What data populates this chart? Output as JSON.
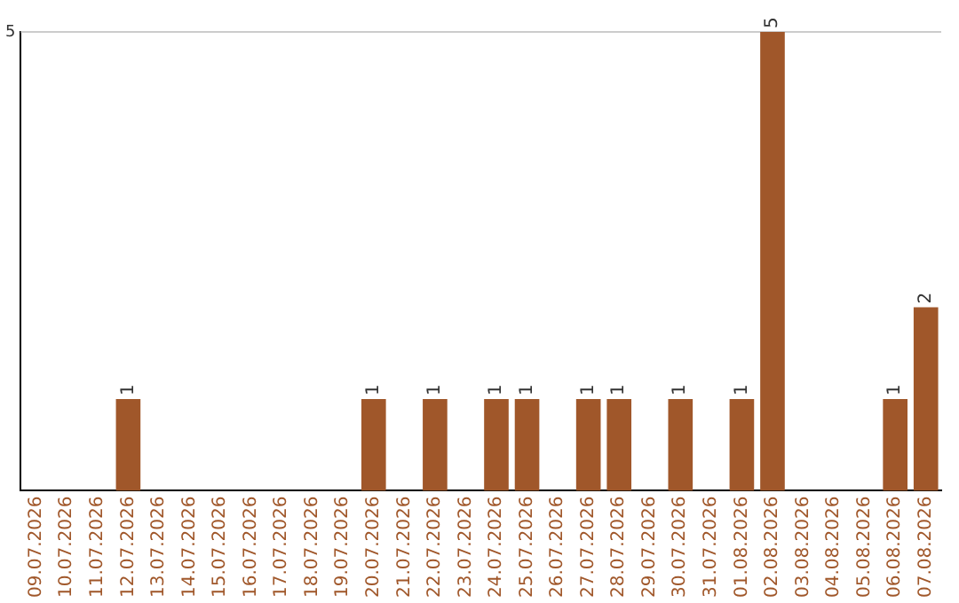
{
  "chart_data": {
    "type": "bar",
    "categories": [
      "09.07.2026",
      "10.07.2026",
      "11.07.2026",
      "12.07.2026",
      "13.07.2026",
      "14.07.2026",
      "15.07.2026",
      "16.07.2026",
      "17.07.2026",
      "18.07.2026",
      "19.07.2026",
      "20.07.2026",
      "21.07.2026",
      "22.07.2026",
      "23.07.2026",
      "24.07.2026",
      "25.07.2026",
      "26.07.2026",
      "27.07.2026",
      "28.07.2026",
      "29.07.2026",
      "30.07.2026",
      "31.07.2026",
      "01.08.2026",
      "02.08.2026",
      "03.08.2026",
      "04.08.2026",
      "05.08.2026",
      "06.08.2026",
      "07.08.2026"
    ],
    "values": [
      0,
      0,
      0,
      1,
      0,
      0,
      0,
      0,
      0,
      0,
      0,
      1,
      0,
      1,
      0,
      1,
      1,
      0,
      1,
      1,
      0,
      1,
      0,
      1,
      5,
      0,
      0,
      0,
      1,
      2
    ],
    "value_labels": [
      null,
      null,
      null,
      "1",
      null,
      null,
      null,
      null,
      null,
      null,
      null,
      "1",
      null,
      "1",
      null,
      "1",
      "1",
      null,
      "1",
      "1",
      null,
      "1",
      null,
      "1",
      "5",
      null,
      null,
      null,
      "1",
      "2"
    ],
    "color": "#a0572a",
    "ylim": [
      0,
      5
    ],
    "yticks": [
      5
    ],
    "ref_lines": [
      {
        "axis": "y",
        "value": 5,
        "color": "#cccccc"
      }
    ],
    "legend": false
  }
}
